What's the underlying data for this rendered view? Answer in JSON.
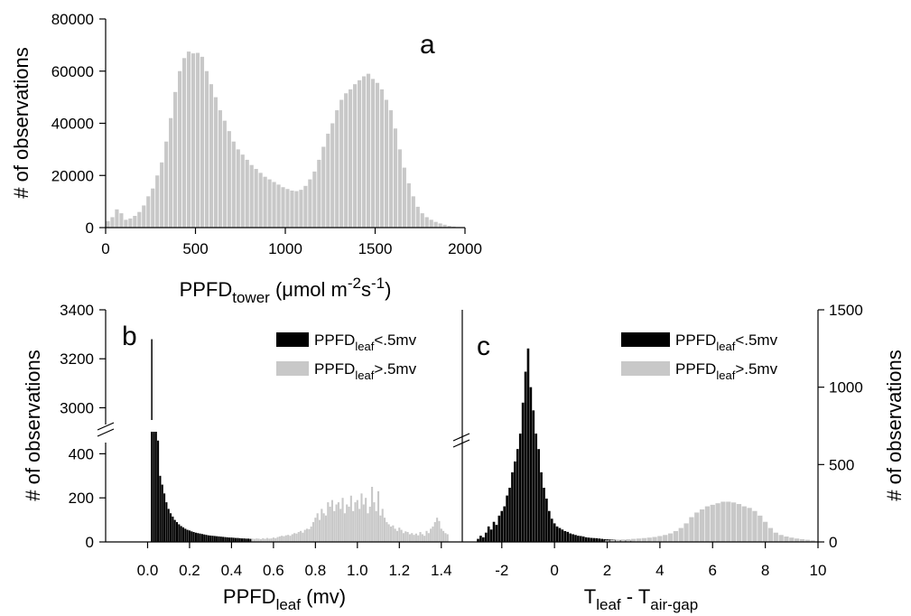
{
  "colors": {
    "black_series": "#000000",
    "gray_series": "#c8c8c8",
    "axis": "#000000"
  },
  "chart_data": [
    {
      "panel": "a",
      "type": "bar",
      "xlabel_main": "PPFD",
      "xlabel_sub": "tower",
      "xlabel_unit_a": " (μmol m",
      "xlabel_sup1": "-2",
      "xlabel_unit_b": "s",
      "xlabel_sup2": "-1",
      "xlabel_unit_c": ")",
      "ylabel": "# of observations",
      "xlim": [
        0,
        2000
      ],
      "ylim": [
        0,
        80000
      ],
      "xticks": [
        "0",
        "500",
        "1000",
        "1500",
        "2000"
      ],
      "yticks": [
        "0",
        "20000",
        "40000",
        "60000",
        "80000"
      ],
      "bin_width": 25,
      "x": [
        12.5,
        37.5,
        62.5,
        87.5,
        112.5,
        137.5,
        162.5,
        187.5,
        212.5,
        237.5,
        262.5,
        287.5,
        312.5,
        337.5,
        362.5,
        387.5,
        412.5,
        437.5,
        462.5,
        487.5,
        512.5,
        537.5,
        562.5,
        587.5,
        612.5,
        637.5,
        662.5,
        687.5,
        712.5,
        737.5,
        762.5,
        787.5,
        812.5,
        837.5,
        862.5,
        887.5,
        912.5,
        937.5,
        962.5,
        987.5,
        1012.5,
        1037.5,
        1062.5,
        1087.5,
        1112.5,
        1137.5,
        1162.5,
        1187.5,
        1212.5,
        1237.5,
        1262.5,
        1287.5,
        1312.5,
        1337.5,
        1362.5,
        1387.5,
        1412.5,
        1437.5,
        1462.5,
        1487.5,
        1512.5,
        1537.5,
        1562.5,
        1587.5,
        1612.5,
        1637.5,
        1662.5,
        1687.5,
        1712.5,
        1737.5,
        1762.5,
        1787.5,
        1812.5,
        1837.5,
        1862.5,
        1887.5,
        1912.5,
        1937.5,
        1962.5,
        1987.5
      ],
      "values": [
        2500,
        4000,
        7000,
        5500,
        3000,
        3500,
        4500,
        6000,
        8500,
        12000,
        15000,
        20000,
        25000,
        33000,
        42000,
        52000,
        60000,
        65000,
        67500,
        66800,
        67000,
        65500,
        60000,
        55000,
        50000,
        45000,
        41000,
        37000,
        33000,
        30000,
        28000,
        26000,
        24000,
        22500,
        21000,
        19500,
        18500,
        17500,
        16500,
        15500,
        14800,
        14200,
        14000,
        14500,
        16000,
        18500,
        21500,
        26000,
        31000,
        36000,
        40000,
        45000,
        49000,
        51500,
        53000,
        55000,
        56500,
        58000,
        59000,
        57000,
        55500,
        53000,
        49000,
        45000,
        38000,
        30000,
        23000,
        17000,
        12000,
        8000,
        5500,
        4000,
        3000,
        2200,
        1600,
        1100,
        700,
        400,
        200,
        100
      ]
    },
    {
      "panel": "b",
      "type": "bar",
      "xlabel_main": "PPFD",
      "xlabel_sub": "leaf",
      "xlabel_unit": " (mv)",
      "ylabel": "# of observations",
      "xlim": [
        -0.2,
        1.5
      ],
      "ylim_lower": [
        0,
        500
      ],
      "ylim_upper": [
        2950,
        3400
      ],
      "axis_break": true,
      "xticks": [
        "0.0",
        "0.2",
        "0.4",
        "0.6",
        "0.8",
        "1.0",
        "1.2",
        "1.4"
      ],
      "yticks_lower": [
        "0",
        "200",
        "400"
      ],
      "yticks_upper": [
        "3000",
        "3200",
        "3400"
      ],
      "legend": [
        {
          "label_main": "PPFD",
          "label_sub": "leaf",
          "label_tail": "<.5mv",
          "color": "#000000"
        },
        {
          "label_main": "PPFD",
          "label_sub": "leaf",
          "label_tail": ">.5mv",
          "color": "#c8c8c8"
        }
      ],
      "bin_width": 0.01,
      "series": [
        {
          "color": "#000000",
          "x": [
            0.02,
            0.03,
            0.04,
            0.05,
            0.06,
            0.07,
            0.08,
            0.09,
            0.1,
            0.11,
            0.12,
            0.13,
            0.14,
            0.15,
            0.16,
            0.17,
            0.18,
            0.19,
            0.2,
            0.21,
            0.22,
            0.23,
            0.24,
            0.25,
            0.26,
            0.27,
            0.28,
            0.29,
            0.3,
            0.31,
            0.32,
            0.33,
            0.34,
            0.35,
            0.36,
            0.37,
            0.38,
            0.39,
            0.4,
            0.41,
            0.42,
            0.43,
            0.44,
            0.45,
            0.46,
            0.47,
            0.48,
            0.49
          ],
          "values": [
            3280,
            500,
            500,
            460,
            300,
            260,
            220,
            180,
            150,
            130,
            115,
            100,
            90,
            80,
            72,
            66,
            60,
            55,
            52,
            48,
            45,
            42,
            40,
            38,
            36,
            34,
            32,
            30,
            29,
            28,
            27,
            26,
            25,
            24,
            23,
            22,
            21,
            20,
            20,
            19,
            18,
            18,
            17,
            16,
            16,
            15,
            15,
            14
          ]
        },
        {
          "color": "#c8c8c8",
          "x": [
            0.5,
            0.51,
            0.52,
            0.53,
            0.54,
            0.55,
            0.56,
            0.57,
            0.58,
            0.59,
            0.6,
            0.61,
            0.62,
            0.63,
            0.64,
            0.65,
            0.66,
            0.67,
            0.68,
            0.69,
            0.7,
            0.71,
            0.72,
            0.73,
            0.74,
            0.75,
            0.76,
            0.77,
            0.78,
            0.79,
            0.8,
            0.81,
            0.82,
            0.83,
            0.84,
            0.85,
            0.86,
            0.87,
            0.88,
            0.89,
            0.9,
            0.91,
            0.92,
            0.93,
            0.94,
            0.95,
            0.96,
            0.97,
            0.98,
            0.99,
            1.0,
            1.01,
            1.02,
            1.03,
            1.04,
            1.05,
            1.06,
            1.07,
            1.08,
            1.09,
            1.1,
            1.11,
            1.12,
            1.13,
            1.14,
            1.15,
            1.16,
            1.17,
            1.18,
            1.19,
            1.2,
            1.21,
            1.22,
            1.23,
            1.24,
            1.25,
            1.26,
            1.27,
            1.28,
            1.29,
            1.3,
            1.31,
            1.32,
            1.33,
            1.34,
            1.35,
            1.36,
            1.37,
            1.38,
            1.39,
            1.4,
            1.41,
            1.42,
            1.43
          ],
          "values": [
            15,
            14,
            16,
            15,
            13,
            17,
            14,
            18,
            15,
            16,
            20,
            17,
            22,
            25,
            28,
            26,
            30,
            32,
            28,
            35,
            40,
            38,
            45,
            50,
            42,
            55,
            60,
            58,
            70,
            90,
            110,
            130,
            100,
            150,
            130,
            120,
            180,
            160,
            190,
            140,
            170,
            180,
            150,
            200,
            130,
            170,
            160,
            210,
            140,
            180,
            190,
            150,
            220,
            170,
            200,
            130,
            160,
            250,
            180,
            140,
            230,
            120,
            150,
            110,
            90,
            80,
            70,
            75,
            60,
            50,
            65,
            55,
            40,
            48,
            45,
            35,
            40,
            32,
            38,
            30,
            45,
            35,
            28,
            50,
            40,
            60,
            70,
            90,
            110,
            95,
            60,
            50,
            40,
            35
          ]
        }
      ]
    },
    {
      "panel": "c",
      "type": "bar",
      "xlabel_main1": "T",
      "xlabel_sub1": "leaf",
      "xlabel_mid": " - T",
      "xlabel_sub2": "air-gap",
      "ylabel": "# of observations",
      "xlim": [
        -3.5,
        10
      ],
      "ylim": [
        0,
        1500
      ],
      "xticks": [
        "-2",
        "0",
        "2",
        "4",
        "6",
        "8",
        "10"
      ],
      "yticks": [
        "0",
        "500",
        "1000",
        "1500"
      ],
      "legend": [
        {
          "label_main": "PPFD",
          "label_sub": "leaf",
          "label_tail": "<.5mv",
          "color": "#000000"
        },
        {
          "label_main": "PPFD",
          "label_sub": "leaf",
          "label_tail": ">.5mv",
          "color": "#c8c8c8"
        }
      ],
      "bin_width": 0.1,
      "series": [
        {
          "color": "#000000",
          "x": [
            -2.9,
            -2.8,
            -2.7,
            -2.6,
            -2.5,
            -2.4,
            -2.3,
            -2.2,
            -2.1,
            -2.0,
            -1.9,
            -1.8,
            -1.7,
            -1.6,
            -1.5,
            -1.4,
            -1.3,
            -1.2,
            -1.1,
            -1.0,
            -0.9,
            -0.8,
            -0.7,
            -0.6,
            -0.5,
            -0.4,
            -0.3,
            -0.2,
            -0.1,
            0.0,
            0.1,
            0.2,
            0.3,
            0.4,
            0.5,
            0.6,
            0.7,
            0.8,
            0.9,
            1.0,
            1.1,
            1.2,
            1.3,
            1.4,
            1.5,
            1.6,
            1.7,
            1.8,
            1.9,
            2.0,
            2.1,
            2.2,
            2.3,
            2.4,
            2.5,
            2.6,
            2.7,
            2.8,
            2.9,
            3.0
          ],
          "values": [
            20,
            40,
            30,
            60,
            100,
            80,
            130,
            110,
            170,
            200,
            230,
            300,
            350,
            450,
            520,
            600,
            700,
            900,
            1100,
            1250,
            1000,
            850,
            700,
            600,
            450,
            350,
            280,
            200,
            150,
            120,
            100,
            90,
            80,
            70,
            65,
            55,
            50,
            45,
            40,
            38,
            35,
            30,
            28,
            26,
            25,
            24,
            22,
            20,
            18,
            17,
            16,
            15,
            14,
            13,
            12,
            11,
            10,
            9,
            8,
            8
          ]
        },
        {
          "color": "#c8c8c8",
          "x": [
            2.0,
            2.2,
            2.4,
            2.6,
            2.8,
            3.0,
            3.2,
            3.4,
            3.6,
            3.8,
            4.0,
            4.2,
            4.4,
            4.6,
            4.8,
            5.0,
            5.2,
            5.4,
            5.6,
            5.8,
            6.0,
            6.2,
            6.4,
            6.6,
            6.8,
            7.0,
            7.2,
            7.4,
            7.6,
            7.8,
            8.0,
            8.2,
            8.4,
            8.6,
            8.8,
            9.0,
            9.2,
            9.4,
            9.6,
            9.8
          ],
          "values": [
            10,
            12,
            14,
            16,
            18,
            20,
            22,
            25,
            28,
            32,
            38,
            45,
            55,
            70,
            90,
            120,
            160,
            190,
            210,
            230,
            240,
            250,
            260,
            260,
            255,
            245,
            230,
            220,
            200,
            170,
            130,
            90,
            60,
            45,
            35,
            28,
            22,
            18,
            14,
            10
          ]
        }
      ]
    }
  ]
}
